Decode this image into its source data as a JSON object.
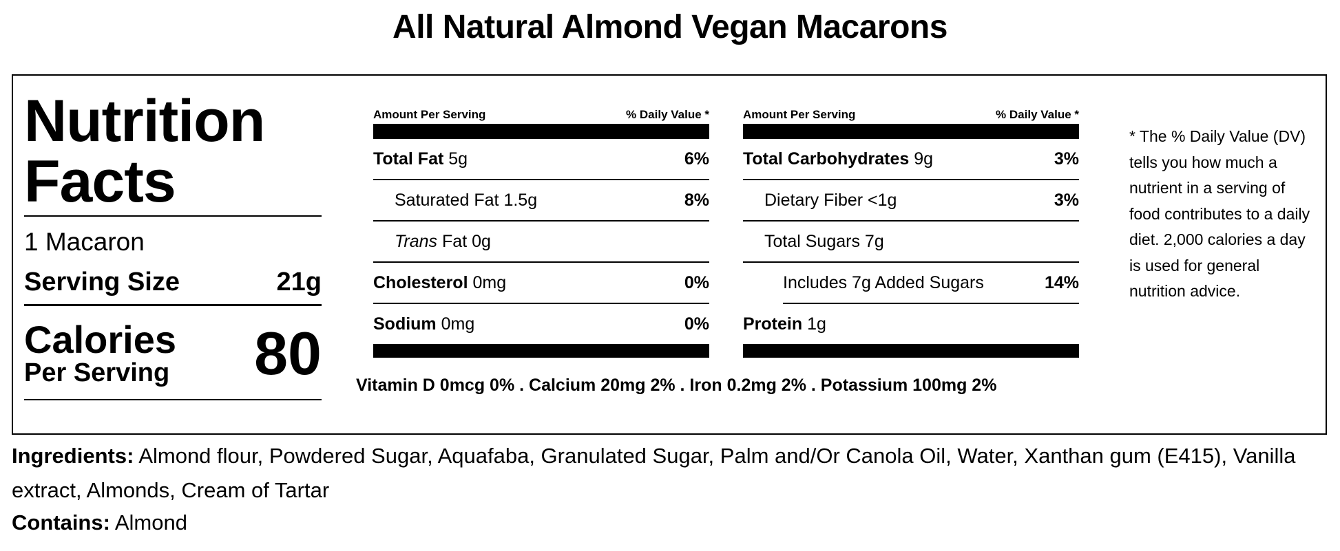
{
  "product_title": "All Natural Almond Vegan Macarons",
  "panel": {
    "title_line1": "Nutrition",
    "title_line2": "Facts",
    "servings": "1 Macaron",
    "serving_size_label": "Serving Size",
    "serving_size_value": "21g",
    "calories_label": "Calories",
    "per_serving_label": "Per Serving",
    "calories_value": "80"
  },
  "columns": {
    "header_amount": "Amount Per Serving",
    "header_dv": "% Daily Value *",
    "left": [
      {
        "name": "Total Fat",
        "amount": "5g",
        "dv": "6%"
      },
      {
        "name": "Saturated Fat",
        "amount": "1.5g",
        "dv": "8%"
      },
      {
        "name": "Trans",
        "name_suffix": "Fat",
        "amount": "0g",
        "dv": ""
      },
      {
        "name": "Cholesterol",
        "amount": "0mg",
        "dv": "0%"
      },
      {
        "name": "Sodium",
        "amount": "0mg",
        "dv": "0%"
      }
    ],
    "right": [
      {
        "name": "Total Carbohydrates",
        "amount": "9g",
        "dv": "3%"
      },
      {
        "name": "Dietary Fiber",
        "amount": "<1g",
        "dv": "3%"
      },
      {
        "name": "Total Sugars",
        "amount": "7g",
        "dv": ""
      },
      {
        "name": "Includes 7g Added Sugars",
        "amount": "",
        "dv": "14%"
      },
      {
        "name": "Protein",
        "amount": "1g",
        "dv": ""
      }
    ]
  },
  "vitamins": "Vitamin D 0mcg 0% . Calcium 20mg 2% . Iron 0.2mg 2% . Potassium 100mg 2%",
  "footnote": "* The % Daily Value (DV) tells you how much a nutrient in a serving of food contributes to a daily diet. 2,000 calories a day is used for general nutrition advice.",
  "ingredients": {
    "label": "Ingredients:",
    "text": "Almond flour, Powdered Sugar, Aquafaba, Granulated Sugar, Palm and/Or Canola Oil, Water, Xanthan gum (E415), Vanilla extract, Almonds, Cream of Tartar"
  },
  "contains": {
    "label": "Contains:",
    "text": "Almond"
  }
}
